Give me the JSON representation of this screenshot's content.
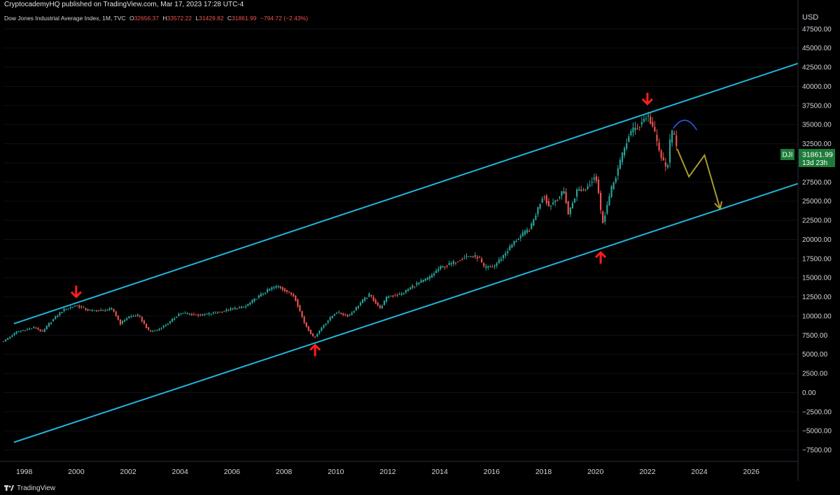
{
  "header": {
    "publisher": "CryptocademyHQ published on TradingView.com, Mar 17, 2023 17:28 UTC-4"
  },
  "legend": {
    "symbol": "Dow Jones Industrial Average Index, 1M, TVC",
    "open": "32656.37",
    "high": "33572.22",
    "low": "31429.82",
    "close": "31861.99",
    "change": "−794.72 (−2.43%)"
  },
  "price_tag": {
    "ticker": "DJI",
    "price": "31861.99",
    "countdown": "13d 23h"
  },
  "footer": {
    "brand": "TradingView"
  },
  "colors": {
    "up": "#26a69a",
    "down": "#ef5350",
    "channel": "#22b3d9",
    "arrow": "#ff1e1e",
    "projection": "#a89a2a",
    "arc": "#2962ff",
    "tag": "#1e7b3a"
  },
  "chart_data": {
    "type": "candlestick",
    "currency": "USD",
    "ylim": [
      -9000,
      50000
    ],
    "xlim": [
      1997.2,
      2027.8
    ],
    "y_ticks": [
      "47500.00",
      "45000.00",
      "42500.00",
      "40000.00",
      "37500.00",
      "35000.00",
      "32500.00",
      "30000.00",
      "27500.00",
      "25000.00",
      "22500.00",
      "20000.00",
      "17500.00",
      "15000.00",
      "12500.00",
      "10000.00",
      "7500.00",
      "5000.00",
      "2500.00",
      "0.00",
      "−2500.00",
      "−5000.00",
      "−7500.00"
    ],
    "x_ticks": [
      "1998",
      "2000",
      "2002",
      "2004",
      "2006",
      "2008",
      "2010",
      "2012",
      "2014",
      "2016",
      "2018",
      "2020",
      "2022",
      "2024",
      "2026"
    ],
    "price_anchors": [
      [
        1997.2,
        6700
      ],
      [
        1997.7,
        7900
      ],
      [
        1998.4,
        8500
      ],
      [
        1998.7,
        7900
      ],
      [
        1999.0,
        9200
      ],
      [
        1999.5,
        10800
      ],
      [
        2000.0,
        11400
      ],
      [
        2000.5,
        10700
      ],
      [
        2001.0,
        10700
      ],
      [
        2001.4,
        10900
      ],
      [
        2001.7,
        9000
      ],
      [
        2002.0,
        9900
      ],
      [
        2002.4,
        10100
      ],
      [
        2002.8,
        8000
      ],
      [
        2003.1,
        8100
      ],
      [
        2003.6,
        9200
      ],
      [
        2004.0,
        10400
      ],
      [
        2004.8,
        10100
      ],
      [
        2005.5,
        10500
      ],
      [
        2006.0,
        10900
      ],
      [
        2006.5,
        11200
      ],
      [
        2007.0,
        12500
      ],
      [
        2007.5,
        13600
      ],
      [
        2007.8,
        13900
      ],
      [
        2008.4,
        12600
      ],
      [
        2008.8,
        9000
      ],
      [
        2009.15,
        7100
      ],
      [
        2009.5,
        8700
      ],
      [
        2010.0,
        10500
      ],
      [
        2010.5,
        10000
      ],
      [
        2011.0,
        11900
      ],
      [
        2011.3,
        12800
      ],
      [
        2011.7,
        11000
      ],
      [
        2012.0,
        12600
      ],
      [
        2012.5,
        12800
      ],
      [
        2013.0,
        14000
      ],
      [
        2013.6,
        15000
      ],
      [
        2014.0,
        16300
      ],
      [
        2014.5,
        16900
      ],
      [
        2015.0,
        17800
      ],
      [
        2015.5,
        17700
      ],
      [
        2015.7,
        16300
      ],
      [
        2016.1,
        16500
      ],
      [
        2016.5,
        18100
      ],
      [
        2016.9,
        19800
      ],
      [
        2017.5,
        21500
      ],
      [
        2018.0,
        26000
      ],
      [
        2018.2,
        24300
      ],
      [
        2018.8,
        26300
      ],
      [
        2018.95,
        23300
      ],
      [
        2019.3,
        26500
      ],
      [
        2019.6,
        26500
      ],
      [
        2020.0,
        28500
      ],
      [
        2020.15,
        25400
      ],
      [
        2020.25,
        21900
      ],
      [
        2020.6,
        26400
      ],
      [
        2020.9,
        29600
      ],
      [
        2021.3,
        33800
      ],
      [
        2021.7,
        35000
      ],
      [
        2022.0,
        36300
      ],
      [
        2022.2,
        34700
      ],
      [
        2022.5,
        31000
      ],
      [
        2022.75,
        29000
      ],
      [
        2022.9,
        33700
      ],
      [
        2023.0,
        34000
      ],
      [
        2023.17,
        31862
      ]
    ],
    "channel_lines": [
      {
        "name": "upper",
        "points": [
          [
            1997.6,
            9000
          ],
          [
            2027.8,
            43000
          ]
        ]
      },
      {
        "name": "lower",
        "points": [
          [
            1997.6,
            -6500
          ],
          [
            2027.8,
            27300
          ]
        ]
      }
    ],
    "arrows": [
      {
        "direction": "down",
        "x": 2000.0,
        "y": 12500
      },
      {
        "direction": "up",
        "x": 2009.2,
        "y": 6200
      },
      {
        "direction": "up",
        "x": 2020.2,
        "y": 18300
      },
      {
        "direction": "down",
        "x": 2022.0,
        "y": 37700
      }
    ],
    "projection_path": [
      [
        2023.15,
        31800
      ],
      [
        2023.6,
        28200
      ],
      [
        2024.2,
        31000
      ],
      [
        2024.8,
        24000
      ]
    ],
    "rounding_top_arc": [
      [
        2023.0,
        34500
      ],
      [
        2023.45,
        35100
      ],
      [
        2023.9,
        34300
      ]
    ]
  }
}
